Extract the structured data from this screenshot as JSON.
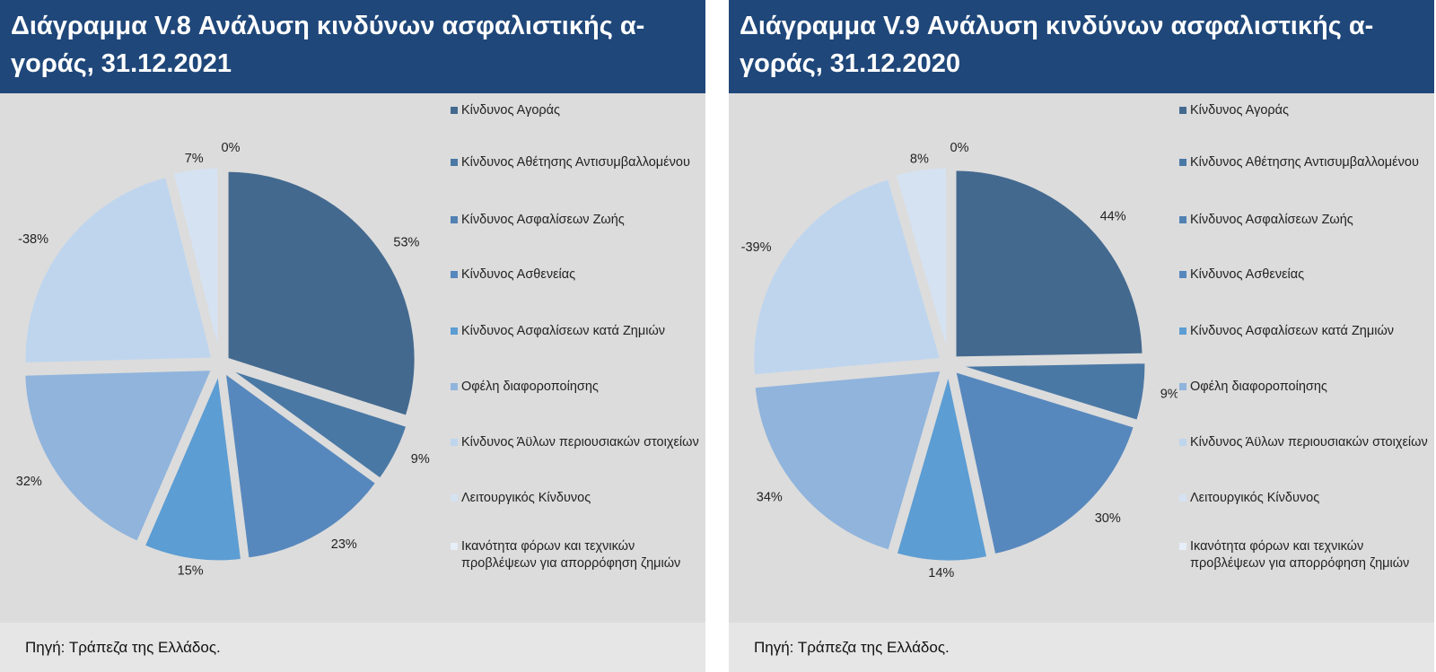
{
  "colors": {
    "title_bg": "#1f477a",
    "chart_bg": "#dcdcdc",
    "source_bg": "#e6e6e6",
    "series_colors": [
      "#43698f",
      "#4a78a5",
      "#5281b3",
      "#5788bd",
      "#5c9dd3",
      "#90b4dc",
      "#bfd5ee",
      "#d5e2f2",
      "#e6eef8"
    ]
  },
  "legend_labels": [
    "Κίνδυνος Αγοράς",
    "Κίνδυνος Αθέτησης Αντισυμβαλλομένου",
    "Κίνδυνος Ασφαλίσεων Ζωής",
    "Κίνδυνος Ασθενείας",
    "Κίνδυνος Ασφαλίσεων κατά Ζημιών",
    "Οφέλη διαφοροποίησης",
    "Κίνδυνος Άϋλων περιουσιακών στοιχείων",
    "Λειτουργικός Κίνδυνος",
    "Ικανότητα φόρων και τεχνικών προβλέψεων για απορρόφηση ζημιών"
  ],
  "chart_data": [
    {
      "type": "pie",
      "title_line1": "Διάγραμμα V.8 Ανάλυση κινδύνων ασφαλιστικής α-",
      "title_line2": "γοράς, 31.12.2021",
      "source": "Πηγή: Τράπεζα της Ελλάδος.",
      "values": [
        53,
        9,
        0,
        23,
        15,
        32,
        -38,
        7,
        0
      ],
      "data_labels": [
        "53%",
        "9%",
        "",
        "23%",
        "15%",
        "32%",
        "-38%",
        "7%",
        "0%"
      ]
    },
    {
      "type": "pie",
      "title_line1": "Διάγραμμα V.9 Ανάλυση κινδύνων ασφαλιστικής α-",
      "title_line2": "γοράς, 31.12.2020",
      "source": "Πηγή: Τράπεζα της Ελλάδος.",
      "values": [
        44,
        9,
        0,
        30,
        14,
        34,
        -39,
        8,
        0
      ],
      "data_labels": [
        "44%",
        "9%",
        "",
        "30%",
        "14%",
        "34%",
        "-39%",
        "8%",
        "0%"
      ]
    }
  ]
}
